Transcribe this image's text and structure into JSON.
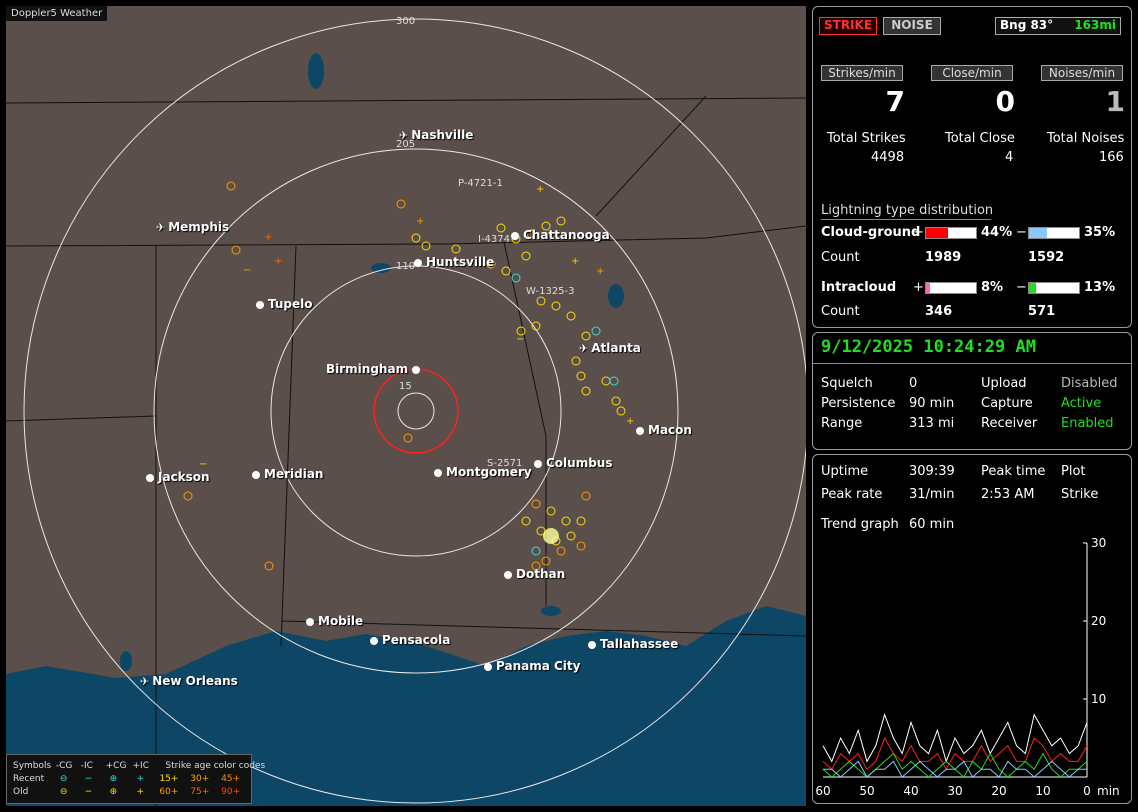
{
  "app": {
    "title": "Doppler5 Weather"
  },
  "colors": {
    "strike": "#ff3030",
    "active": "#22dd22",
    "map_land": "#5a4f4a",
    "map_water": "#0e4666",
    "cg_pos": "#ff0000",
    "cg_neg": "#88c8ff",
    "ic_pos": "#ff66bb",
    "ic_neg": "#22dd22"
  },
  "map": {
    "ring_labels": [
      "300",
      "205",
      "110",
      "15"
    ],
    "cities": [
      {
        "name": "Nashville",
        "icon": "airplane-icon"
      },
      {
        "name": "Memphis",
        "icon": "airplane-icon"
      },
      {
        "name": "Chattanooga",
        "icon": "dot-icon"
      },
      {
        "name": "Huntsville",
        "icon": "dot-icon"
      },
      {
        "name": "Tupelo",
        "icon": "dot-icon"
      },
      {
        "name": "Atlanta",
        "icon": "airplane-icon"
      },
      {
        "name": "Birmingham",
        "icon": "dot-icon"
      },
      {
        "name": "Macon",
        "icon": "dot-icon"
      },
      {
        "name": "Columbus",
        "icon": "dot-icon"
      },
      {
        "name": "Jackson",
        "icon": "dot-icon"
      },
      {
        "name": "Meridian",
        "icon": "dot-icon"
      },
      {
        "name": "Montgomery",
        "icon": "dot-icon"
      },
      {
        "name": "Dothan",
        "icon": "dot-icon"
      },
      {
        "name": "Mobile",
        "icon": "dot-icon"
      },
      {
        "name": "Pensacola",
        "icon": "dot-icon"
      },
      {
        "name": "Tallahassee",
        "icon": "dot-icon"
      },
      {
        "name": "Panama City",
        "icon": "dot-icon"
      },
      {
        "name": "New Orleans",
        "icon": "airplane-icon"
      }
    ],
    "highways": [
      "P-4721-1",
      "I-4374",
      "W-1325-3",
      "S-2571"
    ]
  },
  "legend": {
    "symbols_label": "Symbols",
    "headers": [
      "-CG",
      "-IC",
      "+CG",
      "+IC"
    ],
    "age_title": "Strike age color codes",
    "recent_label": "Recent",
    "old_label": "Old",
    "recent_ages": [
      "15+",
      "30+",
      "45+"
    ],
    "old_ages": [
      "60+",
      "75+",
      "90+"
    ]
  },
  "top": {
    "strike": "STRIKE",
    "noise": "NOISE",
    "bearing": "Bng 83°",
    "distance": "163mi",
    "strikes_min_label": "Strikes/min",
    "close_min_label": "Close/min",
    "noises_min_label": "Noises/min",
    "strikes_min": "7",
    "close_min": "0",
    "noises_min": "1",
    "total_strikes_label": "Total Strikes",
    "total_close_label": "Total Close",
    "total_noises_label": "Total Noises",
    "total_strikes": "4498",
    "total_close": "4",
    "total_noises": "166",
    "dist_title": "Lightning type distribution",
    "cg_label": "Cloud-ground",
    "ic_label": "Intracloud",
    "count_label": "Count",
    "plus": "+",
    "minus": "−",
    "cg_pos_pct": "44%",
    "cg_neg_pct": "35%",
    "ic_pos_pct": "8%",
    "ic_neg_pct": "13%",
    "cg_pos_count": "1989",
    "cg_neg_count": "1592",
    "ic_pos_count": "346",
    "ic_neg_count": "571",
    "cg_pos_frac": 0.44,
    "cg_neg_frac": 0.35,
    "ic_pos_frac": 0.08,
    "ic_neg_frac": 0.13
  },
  "status": {
    "datetime": "9/12/2025 10:24:29 AM",
    "squelch_label": "Squelch",
    "squelch": "0",
    "upload_label": "Upload",
    "upload": "Disabled",
    "persistence_label": "Persistence",
    "persistence": "90 min",
    "capture_label": "Capture",
    "capture": "Active",
    "range_label": "Range",
    "range": "313 mi",
    "receiver_label": "Receiver",
    "receiver": "Enabled"
  },
  "trend": {
    "uptime_label": "Uptime",
    "uptime": "309:39",
    "peak_time_label": "Peak time",
    "peak_time": "2:53 AM",
    "plot_label": "Plot",
    "plot": "Strike",
    "peak_rate_label": "Peak rate",
    "peak_rate": "31/min",
    "trend_graph_label": "Trend graph",
    "trend_graph": "60 min",
    "y_ticks": [
      "30",
      "20",
      "10"
    ],
    "x_ticks": [
      "60",
      "50",
      "40",
      "30",
      "20",
      "10",
      "0"
    ],
    "x_unit": "min"
  },
  "chart_data": {
    "type": "line",
    "xlabel": "min",
    "ylim": [
      0,
      30
    ],
    "xlim": [
      60,
      0
    ],
    "x": [
      60,
      58,
      56,
      54,
      52,
      50,
      48,
      46,
      44,
      42,
      40,
      38,
      36,
      34,
      32,
      30,
      28,
      26,
      24,
      22,
      20,
      18,
      16,
      14,
      12,
      10,
      8,
      6,
      4,
      2,
      0
    ],
    "series": [
      {
        "color": "#ffffff",
        "values": [
          4,
          2,
          5,
          3,
          6,
          2,
          4,
          8,
          5,
          3,
          7,
          4,
          3,
          6,
          2,
          5,
          3,
          4,
          6,
          3,
          5,
          7,
          4,
          3,
          8,
          6,
          4,
          5,
          3,
          4,
          7
        ]
      },
      {
        "color": "#ff2020",
        "values": [
          2,
          1,
          3,
          2,
          3,
          1,
          2,
          5,
          3,
          2,
          4,
          2,
          2,
          3,
          1,
          3,
          2,
          2,
          4,
          2,
          3,
          4,
          2,
          2,
          5,
          4,
          2,
          3,
          2,
          2,
          4
        ]
      },
      {
        "color": "#22dd22",
        "values": [
          1,
          0,
          1,
          2,
          1,
          0,
          1,
          2,
          3,
          1,
          2,
          1,
          0,
          1,
          2,
          1,
          0,
          2,
          1,
          3,
          1,
          0,
          1,
          2,
          1,
          3,
          1,
          0,
          1,
          1,
          2
        ]
      },
      {
        "color": "#88c8ff",
        "values": [
          1,
          1,
          0,
          1,
          2,
          0,
          1,
          1,
          2,
          0,
          1,
          2,
          1,
          0,
          1,
          1,
          2,
          0,
          1,
          1,
          0,
          2,
          1,
          1,
          0,
          1,
          2,
          1,
          0,
          1,
          1
        ]
      }
    ]
  }
}
